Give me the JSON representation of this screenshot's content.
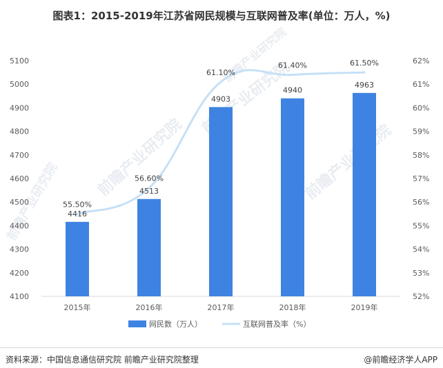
{
  "chart_data": {
    "type": "bar",
    "title": "图表1：2015-2019年江苏省网民规模与互联网普及率(单位：万人，%)",
    "categories": [
      "2015年",
      "2016年",
      "2017年",
      "2018年",
      "2019年"
    ],
    "series": [
      {
        "name": "网民数（万人）",
        "type": "bar",
        "axis": "left",
        "values": [
          4416,
          4513,
          4903,
          4940,
          4963
        ],
        "labels": [
          "4416",
          "4513",
          "4903",
          "4940",
          "4963"
        ],
        "color": "#3f83e2"
      },
      {
        "name": "互联网普及率（%）",
        "type": "line",
        "axis": "right",
        "values": [
          55.5,
          56.6,
          61.1,
          61.4,
          61.5
        ],
        "labels": [
          "55.50%",
          "56.60%",
          "61.10%",
          "61.40%",
          "61.50%"
        ],
        "color": "#c5e0f7"
      }
    ],
    "ylim": [
      4100,
      5100
    ],
    "y_ticks": [
      "4100",
      "4200",
      "4300",
      "4400",
      "4500",
      "4600",
      "4700",
      "4800",
      "4900",
      "5000",
      "5100"
    ],
    "y2lim": [
      52,
      62
    ],
    "y2_ticks": [
      "52%",
      "53%",
      "54%",
      "55%",
      "56%",
      "57%",
      "58%",
      "59%",
      "60%",
      "61%",
      "62%"
    ],
    "grid": false,
    "legend_position": "bottom"
  },
  "watermark": "前瞻产业研究院",
  "footer": {
    "source": "资料来源：中国信息通信研究院 前瞻产业研究院整理",
    "brand": "@前瞻经济学人APP"
  }
}
